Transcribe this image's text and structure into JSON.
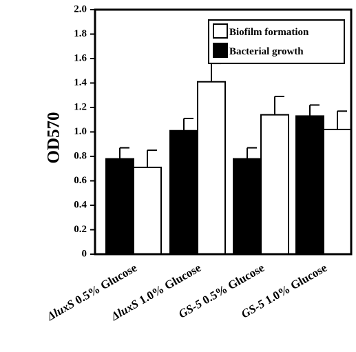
{
  "chart_data": {
    "type": "bar",
    "title": "",
    "xlabel": "",
    "ylabel": "OD570",
    "ylim": [
      0,
      2.0
    ],
    "yticks": [
      "0",
      "0.2",
      "0.4",
      "0.6",
      "0.8",
      "1.0",
      "1.2",
      "1.4",
      "1.6",
      "1.8",
      "2.0"
    ],
    "grid": false,
    "legend_position": "top-right",
    "categories": [
      {
        "prefix": "ΔluxS",
        "rest": " 0.5% Glucose"
      },
      {
        "prefix": "ΔluxS",
        "rest": " 1.0% Glucose"
      },
      {
        "prefix": "GS-5",
        "rest": " 0.5% Glucose"
      },
      {
        "prefix": "GS-5",
        "rest": " 1.0% Glucose"
      }
    ],
    "series": [
      {
        "name": "Bacterial growth",
        "color": "#000000",
        "values": [
          0.78,
          1.01,
          0.78,
          1.13
        ],
        "errors": [
          0.09,
          0.1,
          0.09,
          0.09
        ]
      },
      {
        "name": "Biofilm formation",
        "color": "#ffffff",
        "values": [
          0.71,
          1.41,
          1.14,
          1.02
        ],
        "errors": [
          0.14,
          0.15,
          0.15,
          0.15
        ]
      }
    ]
  }
}
